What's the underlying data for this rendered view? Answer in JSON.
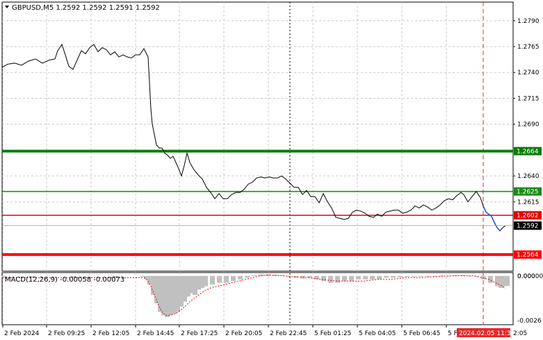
{
  "chart_data": [
    {
      "type": "line",
      "symbol_header": "GBPUSD,M5",
      "ohlc_header": "1.2592 1.2592 1.2591 1.2592",
      "ylim": [
        1.2548,
        1.2808
      ],
      "y_ticks": [
        "1.2790",
        "1.2765",
        "1.2740",
        "1.2715",
        "1.2690",
        "1.2640",
        "1.2615"
      ],
      "x_ticks": [
        "2 Feb 2024",
        "2 Feb 09:25",
        "2 Feb 12:05",
        "2 Feb 14:45",
        "2 Feb 17:25",
        "2 Feb 20:05",
        "2 Feb 22:45",
        "5 Feb 01:25",
        "5 Feb 04:05",
        "5 Feb 06:45",
        "5 F"
      ],
      "x_tail_fragment": "2:05",
      "x_marker_label": "2024.02.05 11:35",
      "series": [
        {
          "points": [
            [
              0,
              1.2745
            ],
            [
              8,
              1.2748
            ],
            [
              18,
              1.2749
            ],
            [
              28,
              1.2747
            ],
            [
              38,
              1.2751
            ],
            [
              48,
              1.2753
            ],
            [
              58,
              1.2749
            ],
            [
              68,
              1.2752
            ],
            [
              76,
              1.2753
            ],
            [
              80,
              1.2761
            ],
            [
              86,
              1.2767
            ],
            [
              90,
              1.2759
            ],
            [
              96,
              1.2746
            ],
            [
              102,
              1.2743
            ],
            [
              108,
              1.2752
            ],
            [
              114,
              1.2761
            ],
            [
              120,
              1.2758
            ],
            [
              126,
              1.2764
            ],
            [
              132,
              1.2767
            ],
            [
              138,
              1.276
            ],
            [
              144,
              1.2764
            ],
            [
              150,
              1.2762
            ],
            [
              156,
              1.2757
            ],
            [
              162,
              1.276
            ],
            [
              168,
              1.2755
            ],
            [
              174,
              1.2757
            ],
            [
              180,
              1.2755
            ],
            [
              186,
              1.2754
            ],
            [
              192,
              1.2757
            ],
            [
              198,
              1.2757
            ],
            [
              204,
              1.2763
            ],
            [
              210,
              1.2755
            ],
            [
              212,
              1.273
            ],
            [
              214,
              1.2705
            ],
            [
              216,
              1.269
            ],
            [
              219,
              1.268
            ],
            [
              222,
              1.267
            ],
            [
              226,
              1.2667
            ],
            [
              230,
              1.2667
            ],
            [
              234,
              1.2662
            ],
            [
              238,
              1.266
            ],
            [
              242,
              1.2657
            ],
            [
              246,
              1.2659
            ],
            [
              250,
              1.2653
            ],
            [
              254,
              1.2647
            ],
            [
              258,
              1.264
            ],
            [
              262,
              1.265
            ],
            [
              266,
              1.2662
            ],
            [
              270,
              1.2653
            ],
            [
              276,
              1.2646
            ],
            [
              282,
              1.2641
            ],
            [
              288,
              1.2637
            ],
            [
              294,
              1.2629
            ],
            [
              300,
              1.2624
            ],
            [
              306,
              1.2618
            ],
            [
              312,
              1.2623
            ],
            [
              318,
              1.2618
            ],
            [
              324,
              1.2618
            ],
            [
              330,
              1.2622
            ],
            [
              336,
              1.2624
            ],
            [
              342,
              1.2624
            ],
            [
              348,
              1.2627
            ],
            [
              354,
              1.2632
            ],
            [
              360,
              1.2634
            ],
            [
              366,
              1.2638
            ],
            [
              372,
              1.2639
            ],
            [
              378,
              1.2638
            ],
            [
              384,
              1.2639
            ],
            [
              390,
              1.2638
            ],
            [
              396,
              1.2638
            ],
            [
              402,
              1.264
            ],
            [
              408,
              1.2637
            ],
            [
              414,
              1.2633
            ],
            [
              420,
              1.2629
            ],
            [
              426,
              1.2629
            ],
            [
              432,
              1.2622
            ],
            [
              438,
              1.2626
            ],
            [
              444,
              1.262
            ],
            [
              450,
              1.262
            ],
            [
              456,
              1.2614
            ],
            [
              462,
              1.2623
            ],
            [
              468,
              1.2615
            ],
            [
              474,
              1.2609
            ],
            [
              480,
              1.26
            ],
            [
              486,
              1.2599
            ],
            [
              492,
              1.2598
            ],
            [
              498,
              1.2599
            ],
            [
              504,
              1.2605
            ],
            [
              510,
              1.2607
            ],
            [
              516,
              1.2606
            ],
            [
              522,
              1.2604
            ],
            [
              528,
              1.2601
            ],
            [
              534,
              1.26
            ],
            [
              540,
              1.2603
            ],
            [
              546,
              1.2601
            ],
            [
              552,
              1.2605
            ],
            [
              558,
              1.2606
            ],
            [
              564,
              1.2607
            ],
            [
              570,
              1.2607
            ],
            [
              576,
              1.2604
            ],
            [
              582,
              1.2605
            ],
            [
              588,
              1.2607
            ],
            [
              594,
              1.2611
            ],
            [
              600,
              1.2609
            ],
            [
              606,
              1.2612
            ],
            [
              612,
              1.261
            ],
            [
              618,
              1.2607
            ],
            [
              624,
              1.2609
            ],
            [
              630,
              1.2612
            ],
            [
              636,
              1.2616
            ],
            [
              642,
              1.2618
            ],
            [
              648,
              1.2617
            ],
            [
              654,
              1.2621
            ],
            [
              660,
              1.2624
            ],
            [
              664,
              1.2622
            ],
            [
              670,
              1.2615
            ],
            [
              676,
              1.262
            ],
            [
              682,
              1.2625
            ],
            [
              688,
              1.2619
            ],
            [
              692,
              1.2611
            ],
            [
              696,
              1.2605
            ],
            [
              700,
              1.2603
            ],
            [
              704,
              1.2601
            ],
            [
              708,
              1.2595
            ],
            [
              712,
              1.259
            ],
            [
              716,
              1.2587
            ],
            [
              720,
              1.259
            ],
            [
              724,
              1.2592
            ]
          ],
          "color": "#000000"
        }
      ],
      "grid": true,
      "levels": [
        {
          "value": 1.2664,
          "label": "1.2664",
          "color": "#0a7d0a",
          "thick": true
        },
        {
          "value": 1.2625,
          "label": "1.2625",
          "color": "#1a8a1a",
          "thick": false
        },
        {
          "value": 1.2602,
          "label": "1.2602",
          "color": "#e00000",
          "thick": false
        },
        {
          "value": 1.2564,
          "label": "1.2564",
          "color": "#ff0000",
          "thick": true
        }
      ],
      "current_price": {
        "value": 1.2592,
        "label": "1.2592"
      }
    },
    {
      "type": "bar",
      "title": "MACD(12,26,9) -0.00058 -0.00073",
      "ylim": [
        -0.00285,
        0.0002
      ],
      "y_ticks": [
        "0.00000",
        "-0.0026"
      ],
      "y_ticks_top": "0.000",
      "histogram_color": "#c0c0c0",
      "signal_color": "#ff0000",
      "histogram": [
        [
          0,
          -0.0001
        ],
        [
          40,
          -0.0001
        ],
        [
          100,
          -0.0001
        ],
        [
          160,
          -0.0001
        ],
        [
          200,
          -5e-05
        ],
        [
          205,
          -0.0002
        ],
        [
          210,
          -0.0005
        ],
        [
          215,
          -0.0011
        ],
        [
          220,
          -0.0016
        ],
        [
          225,
          -0.0021
        ],
        [
          230,
          -0.0023
        ],
        [
          235,
          -0.0024
        ],
        [
          240,
          -0.0023
        ],
        [
          245,
          -0.0022
        ],
        [
          250,
          -0.0021
        ],
        [
          255,
          -0.0018
        ],
        [
          260,
          -0.0015
        ],
        [
          265,
          -0.0012
        ],
        [
          270,
          -0.001
        ],
        [
          275,
          -0.0011
        ],
        [
          280,
          -0.0008
        ],
        [
          285,
          -0.0007
        ],
        [
          290,
          -0.0006
        ],
        [
          300,
          -0.0005
        ],
        [
          310,
          -0.0004
        ],
        [
          320,
          -0.0004
        ],
        [
          330,
          -0.0003
        ],
        [
          340,
          -0.0002
        ],
        [
          350,
          -0.0001
        ],
        [
          360,
          5e-05
        ],
        [
          370,
          0.0001
        ],
        [
          380,
          0.0001
        ],
        [
          390,
          7e-05
        ],
        [
          400,
          4e-05
        ],
        [
          410,
          -3e-05
        ],
        [
          420,
          -0.0001
        ],
        [
          430,
          -0.00015
        ],
        [
          440,
          -0.0001
        ],
        [
          450,
          -0.0002
        ],
        [
          460,
          -0.0003
        ],
        [
          470,
          -0.0004
        ],
        [
          480,
          -0.0004
        ],
        [
          490,
          -0.0003
        ],
        [
          500,
          -0.0003
        ],
        [
          510,
          -0.0002
        ],
        [
          520,
          -0.0002
        ],
        [
          530,
          -0.0002
        ],
        [
          540,
          -0.0002
        ],
        [
          550,
          -0.0001
        ],
        [
          560,
          -0.0001
        ],
        [
          570,
          -8e-05
        ],
        [
          580,
          -5e-05
        ],
        [
          590,
          -5e-05
        ],
        [
          600,
          -3e-05
        ],
        [
          610,
          -2e-05
        ],
        [
          620,
          0.0
        ],
        [
          630,
          3e-05
        ],
        [
          640,
          2e-05
        ],
        [
          650,
          5e-05
        ],
        [
          660,
          6e-05
        ],
        [
          670,
          2e-05
        ],
        [
          680,
          -2e-05
        ],
        [
          690,
          -0.0002
        ],
        [
          700,
          -0.0004
        ],
        [
          710,
          -0.0006
        ],
        [
          715,
          -0.0007
        ],
        [
          720,
          -0.0006
        ],
        [
          724,
          -0.00058
        ]
      ],
      "signal": [
        [
          0,
          -0.0001
        ],
        [
          100,
          -0.0001
        ],
        [
          190,
          -0.0001
        ],
        [
          205,
          -0.0001
        ],
        [
          210,
          -0.0003
        ],
        [
          215,
          -0.0007
        ],
        [
          220,
          -0.0012
        ],
        [
          225,
          -0.0017
        ],
        [
          230,
          -0.0021
        ],
        [
          235,
          -0.0023
        ],
        [
          240,
          -0.0023
        ],
        [
          250,
          -0.0022
        ],
        [
          260,
          -0.0019
        ],
        [
          270,
          -0.0015
        ],
        [
          280,
          -0.0012
        ],
        [
          290,
          -0.0009
        ],
        [
          300,
          -0.0007
        ],
        [
          310,
          -0.0006
        ],
        [
          320,
          -0.0005
        ],
        [
          330,
          -0.0004
        ],
        [
          340,
          -0.0003
        ],
        [
          350,
          -0.0002
        ],
        [
          360,
          -0.0001
        ],
        [
          370,
          0.0
        ],
        [
          380,
          5e-05
        ],
        [
          390,
          5e-05
        ],
        [
          400,
          3e-05
        ],
        [
          420,
          -5e-05
        ],
        [
          440,
          -0.0001
        ],
        [
          460,
          -0.0002
        ],
        [
          480,
          -0.0003
        ],
        [
          500,
          -0.0003
        ],
        [
          520,
          -0.0003
        ],
        [
          540,
          -0.0002
        ],
        [
          560,
          -0.0002
        ],
        [
          580,
          -0.0001
        ],
        [
          600,
          -0.0001
        ],
        [
          620,
          -5e-05
        ],
        [
          640,
          0.0
        ],
        [
          660,
          2e-05
        ],
        [
          680,
          0.0
        ],
        [
          700,
          -0.0002
        ],
        [
          710,
          -0.0004
        ],
        [
          720,
          -0.0006
        ],
        [
          724,
          -0.00073
        ]
      ]
    }
  ]
}
